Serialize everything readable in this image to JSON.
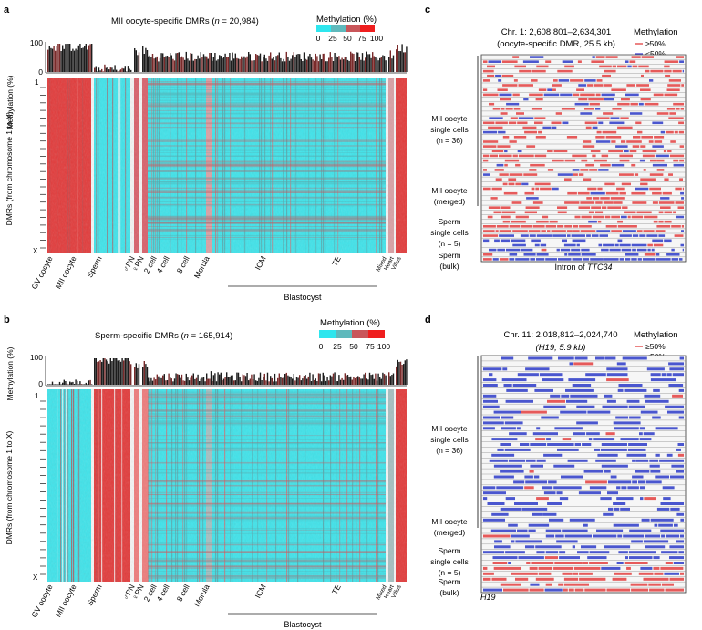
{
  "panel_a": {
    "letter": "a",
    "title_pre": "MII oocyte-specific DMRs (",
    "title_n": "n",
    "title_post": " = 20,984)",
    "y_axis_label": "Methylation (%)",
    "y_ticks": [
      "100",
      "0"
    ],
    "dmr_axis_label": "DMRs (from chromosome 1 to X)",
    "dmr_top": "1",
    "dmr_bottom": "X",
    "pattern": "oocyte"
  },
  "panel_b": {
    "letter": "b",
    "title_pre": "Sperm-specific DMRs (",
    "title_n": "n",
    "title_post": " = 165,914)",
    "y_axis_label": "Methylation (%)",
    "y_ticks": [
      "100",
      "0"
    ],
    "dmr_axis_label": "DMRs (from chromosome 1 to X)",
    "dmr_top": "1",
    "dmr_bottom": "X",
    "pattern": "sperm"
  },
  "colorbar": {
    "title": "Methylation (%)",
    "ticks": [
      "0",
      "25",
      "50",
      "75",
      "100"
    ],
    "colors": [
      "#2ee6ee",
      "#5fb9bc",
      "#c9565a",
      "#ef1e1e"
    ]
  },
  "stages": [
    {
      "label": "GV oocyte",
      "sym": ""
    },
    {
      "label": "MII oocyte",
      "sym": ""
    },
    {
      "label": "Sperm",
      "sym": ""
    },
    {
      "label": "PN",
      "sym": "♂"
    },
    {
      "label": "PN",
      "sym": "♀"
    },
    {
      "label": "2 cell",
      "sym": ""
    },
    {
      "label": "4 cell",
      "sym": ""
    },
    {
      "label": "8 cell",
      "sym": ""
    },
    {
      "label": "Morula",
      "sym": ""
    },
    {
      "label": "ICM",
      "sym": ""
    },
    {
      "label": "TE",
      "sym": ""
    },
    {
      "label": "Mixed",
      "sym": ""
    },
    {
      "label": "Heart",
      "sym": ""
    },
    {
      "label": "Villus",
      "sym": ""
    }
  ],
  "blastocyst_label": "Blastocyst",
  "panel_c": {
    "letter": "c",
    "title_line1": "Chr. 1: 2,608,801–2,634,301",
    "title_line2": "(oocyte-specific DMR, 25.5 kb)",
    "legend_title": "Methylation",
    "legend_high": "≥50%",
    "legend_low": "<50%",
    "labels": [
      {
        "l1": "MII oocyte",
        "l2": "single cells",
        "l3": "(n = 36)"
      },
      {
        "l1": "MII oocyte",
        "l2": "(merged)",
        "l3": ""
      },
      {
        "l1": "Sperm",
        "l2": "single cells",
        "l3": "(n = 5)"
      },
      {
        "l1": "Sperm",
        "l2": "(bulk)",
        "l3": ""
      }
    ],
    "footer_pre": "Intron of ",
    "footer_gene": "TTC34"
  },
  "panel_d": {
    "letter": "d",
    "title_line1": "Chr. 11: 2,018,812–2,024,740",
    "title_line2": "(H19, 5.9 kb)",
    "legend_title": "Methylation",
    "legend_high": "≥50%",
    "legend_low": "<50%",
    "labels": [
      {
        "l1": "MII oocyte",
        "l2": "single cells",
        "l3": "(n = 36)"
      },
      {
        "l1": "MII oocyte",
        "l2": "(merged)",
        "l3": ""
      },
      {
        "l1": "Sperm",
        "l2": "single cells",
        "l3": "(n = 5)"
      },
      {
        "l1": "Sperm",
        "l2": "(bulk)",
        "l3": ""
      }
    ],
    "gene_label": "H19"
  }
}
